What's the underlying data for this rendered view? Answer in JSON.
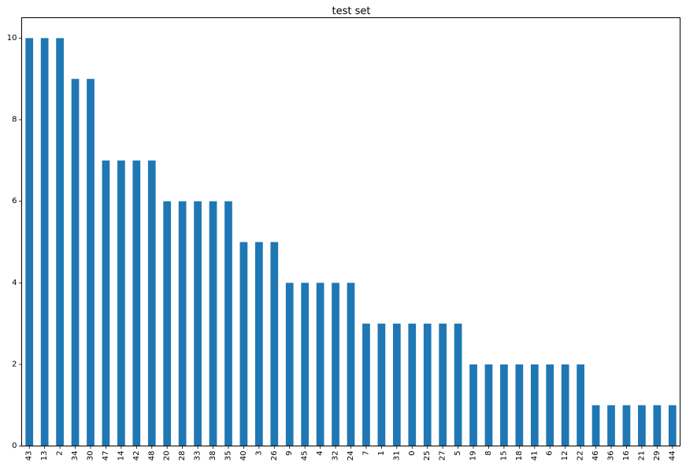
{
  "chart_data": {
    "type": "bar",
    "title": "test set",
    "xlabel": "",
    "ylabel": "",
    "categories": [
      "43",
      "13",
      "2",
      "34",
      "30",
      "47",
      "14",
      "42",
      "48",
      "20",
      "28",
      "33",
      "38",
      "35",
      "40",
      "3",
      "26",
      "9",
      "45",
      "4",
      "32",
      "24",
      "7",
      "1",
      "31",
      "0",
      "25",
      "27",
      "5",
      "19",
      "8",
      "15",
      "18",
      "41",
      "6",
      "12",
      "22",
      "46",
      "36",
      "16",
      "21",
      "29",
      "44"
    ],
    "values": [
      10,
      10,
      10,
      9,
      9,
      7,
      7,
      7,
      7,
      6,
      6,
      6,
      6,
      6,
      5,
      5,
      5,
      4,
      4,
      4,
      4,
      4,
      3,
      3,
      3,
      3,
      3,
      3,
      3,
      2,
      2,
      2,
      2,
      2,
      2,
      2,
      2,
      1,
      1,
      1,
      1,
      1,
      1
    ],
    "ylim": [
      0,
      10.5
    ],
    "yticks": [
      0,
      2,
      4,
      6,
      8,
      10
    ],
    "grid": false,
    "bar_color": "#1f77b4"
  }
}
